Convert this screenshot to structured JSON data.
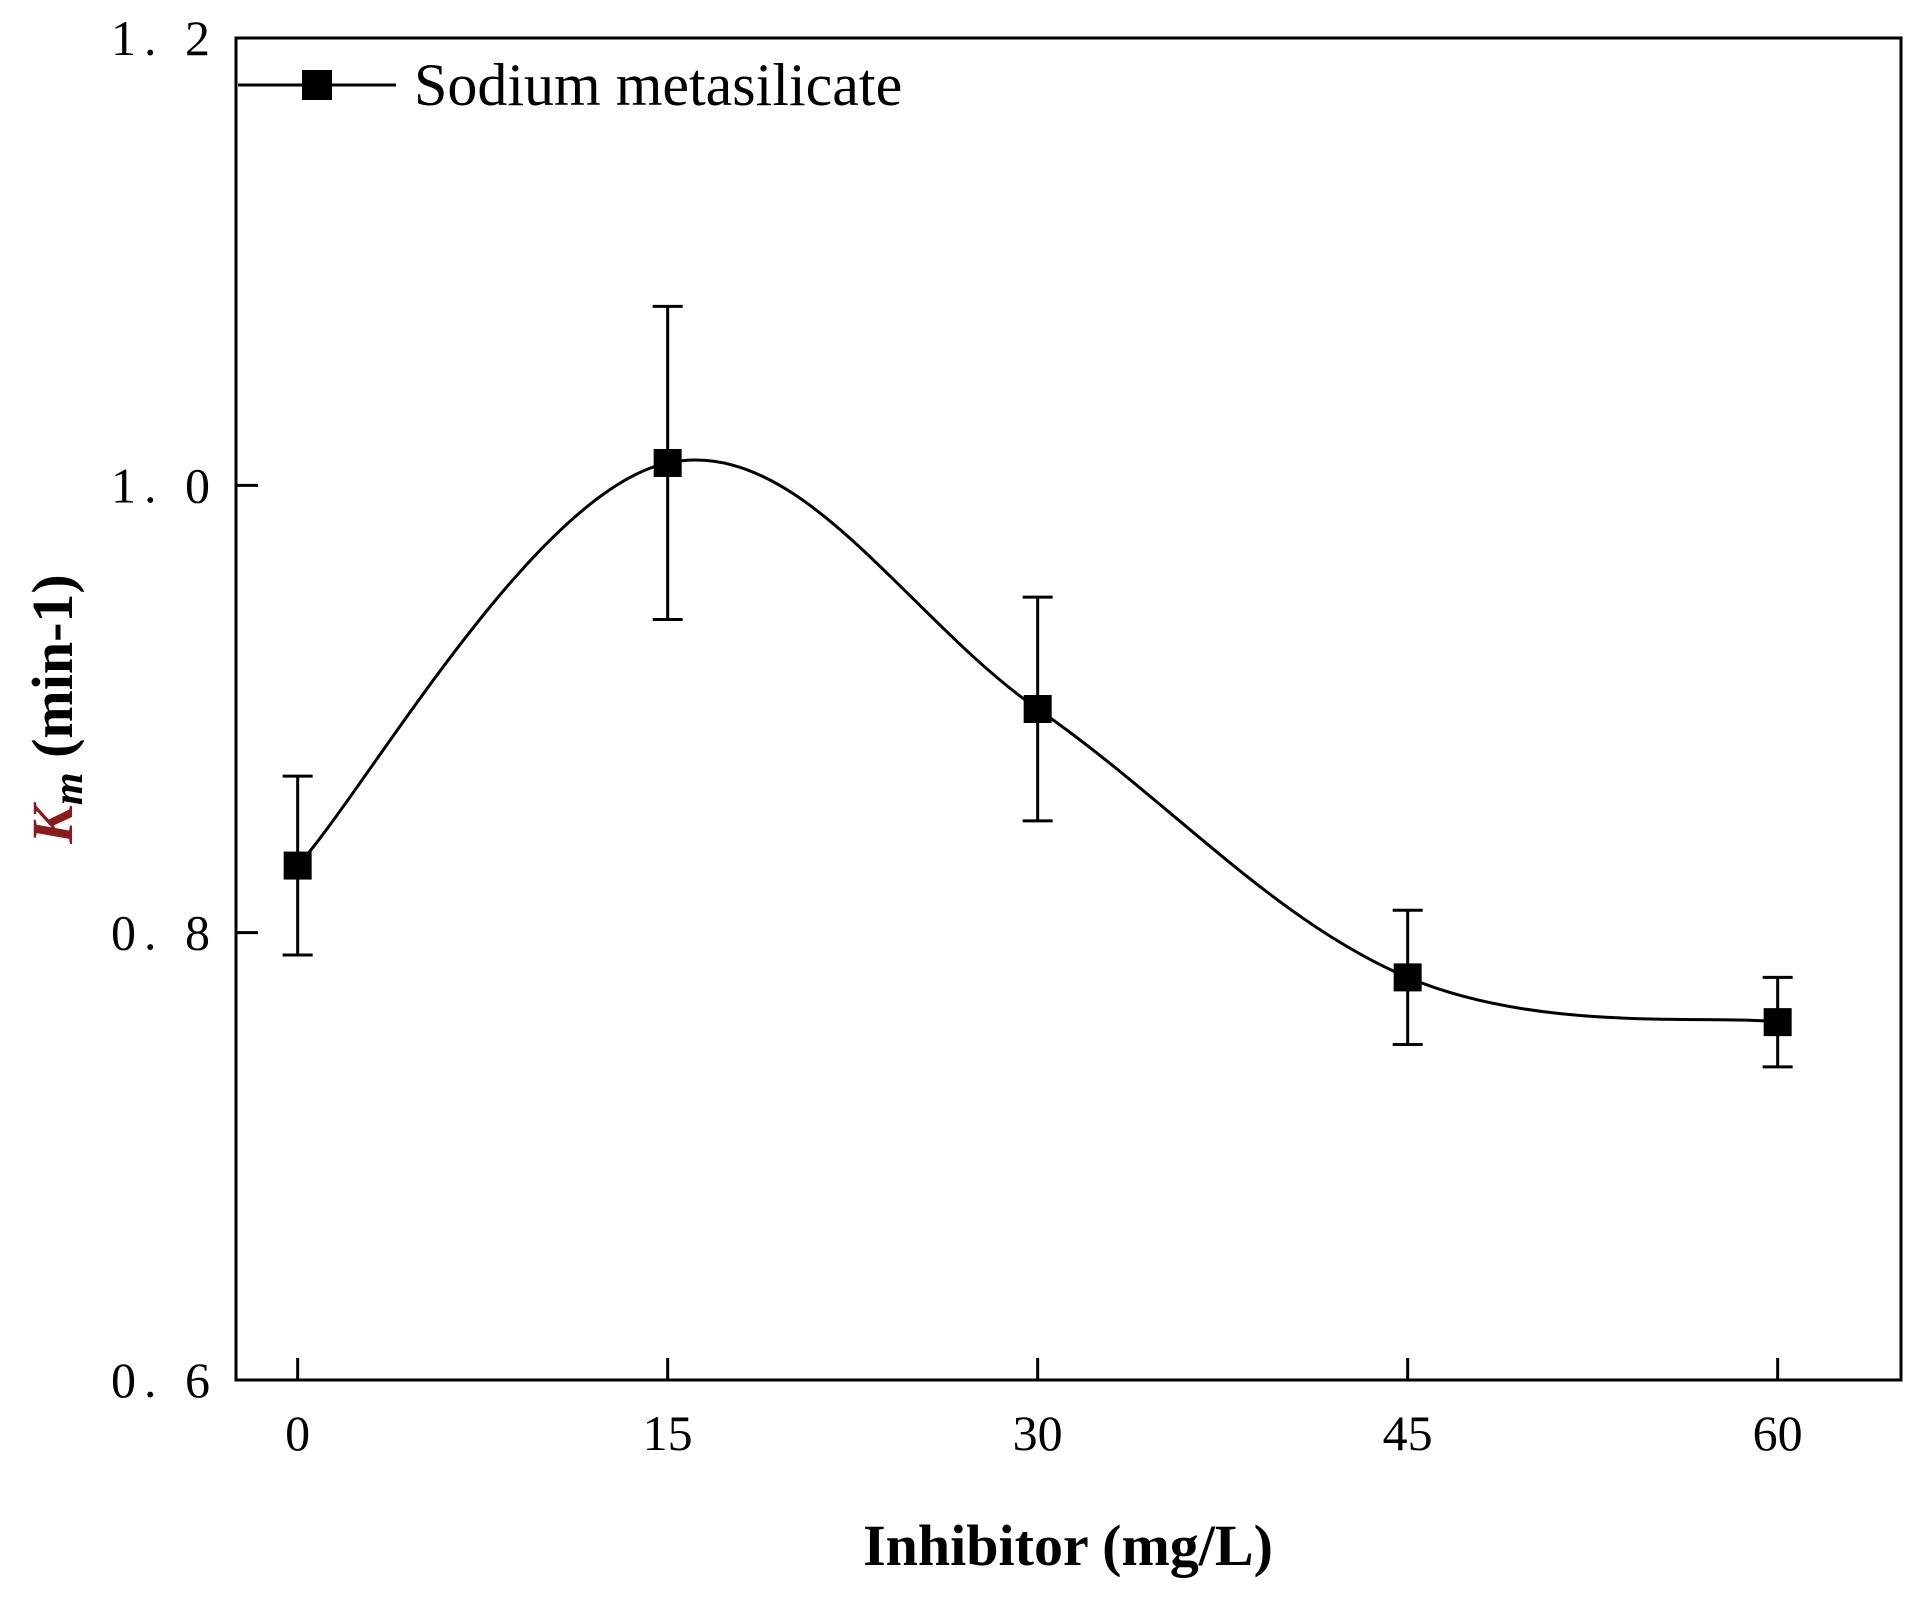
{
  "chart_data": {
    "type": "line",
    "title": "",
    "xlabel": "Inhibitor (mg/L)",
    "ylabel": {
      "symbol": "K",
      "subscript": "m",
      "unit": " (min-1)"
    },
    "x_ticks": [
      "0",
      "15",
      "30",
      "45",
      "60"
    ],
    "y_ticks": [
      "0.6",
      "0.8",
      "1.0",
      "1.2"
    ],
    "xlim": [
      -2.5,
      65
    ],
    "ylim": [
      0.6,
      1.2
    ],
    "grid": false,
    "legend_position": "top-left",
    "series": [
      {
        "name": "Sodium metasilicate",
        "marker": "square",
        "line": "smooth",
        "x": [
          0,
          15,
          30,
          45,
          60
        ],
        "y": [
          0.83,
          1.01,
          0.9,
          0.78,
          0.76
        ],
        "error_low": [
          0.79,
          0.94,
          0.85,
          0.75,
          0.74
        ],
        "error_high": [
          0.87,
          1.08,
          0.95,
          0.81,
          0.78
        ]
      }
    ]
  },
  "colors": {
    "axis": "#000000",
    "series": "#000000",
    "ylabel_symbol": "#8b1a1a"
  }
}
